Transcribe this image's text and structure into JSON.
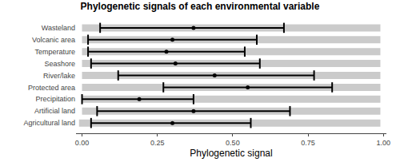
{
  "chart_data": {
    "type": "errorbar",
    "title": "Phylogenetic signals of each environmental variable",
    "x_label": "Phylogenetic signal",
    "orientation": "horizontal",
    "categories": [
      "Wasteland",
      "Volcanic area",
      "Temperature",
      "Seashore",
      "River/lake",
      "Protected area",
      "Precipitation",
      "Artificial land",
      "Agricultural land"
    ],
    "values": [
      0.37,
      0.3,
      0.28,
      0.31,
      0.44,
      0.55,
      0.19,
      0.37,
      0.3
    ],
    "lower": [
      0.06,
      0.02,
      0.02,
      0.03,
      0.12,
      0.27,
      0.0,
      0.05,
      0.03
    ],
    "upper": [
      0.67,
      0.58,
      0.54,
      0.59,
      0.77,
      0.83,
      0.37,
      0.69,
      0.56
    ],
    "spread_lower": [
      0.0,
      0.0,
      0.0,
      0.0,
      0.0,
      0.0,
      0.0,
      0.0,
      -0.01
    ],
    "spread_upper": [
      0.99,
      0.99,
      0.99,
      0.99,
      0.99,
      0.99,
      0.99,
      0.99,
      0.99
    ],
    "color": "#000000",
    "xlim": [
      -0.02,
      1.01
    ],
    "xticks": [
      {
        "value": 0,
        "label": "0.00"
      },
      {
        "value": 0.25,
        "label": "0.25"
      },
      {
        "value": 0.5,
        "label": "0.50"
      },
      {
        "value": 0.75,
        "label": "0.75"
      },
      {
        "value": 1,
        "label": "1.00"
      }
    ],
    "grid": false
  }
}
